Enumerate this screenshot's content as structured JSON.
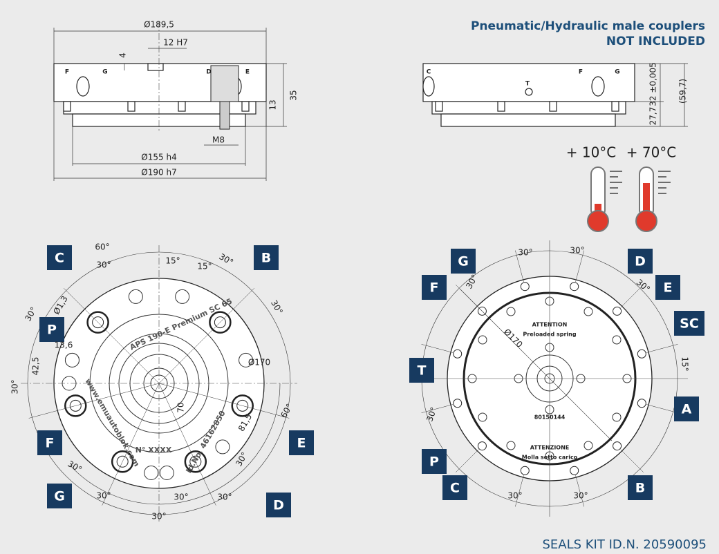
{
  "header": {
    "title": "Pneumatic/Hydraulic male couplers",
    "subtitle": "NOT INCLUDED"
  },
  "footer": "SEALS KIT ID.N. 20590095",
  "temperatures": [
    "+ 10°C",
    "+ 70°C"
  ],
  "side_view_left": {
    "ports": [
      "F",
      "G",
      "D",
      "E"
    ],
    "dimensions": [
      "Ø189,5",
      "12 H7",
      "4",
      "35",
      "13",
      "M8",
      "Ø155 h4",
      "Ø190 h7"
    ]
  },
  "side_view_right": {
    "ports": [
      "C",
      "T",
      "F",
      "G"
    ],
    "dimensions": [
      "32 ±0,005",
      "(59,7)",
      "27,7"
    ]
  },
  "front_view_left": {
    "labels": [
      "C",
      "B",
      "P",
      "F",
      "E",
      "G",
      "D"
    ],
    "dimensions": [
      "60°",
      "30°",
      "15°",
      "15°",
      "30°",
      "30°",
      "30°",
      "Ø1,3",
      "13,6",
      "42,5",
      "30°",
      "Ø170",
      "70",
      "81,5",
      "60°",
      "30°",
      "30°",
      "30°",
      "30°",
      "30°",
      "30°"
    ],
    "engraving": [
      "APS 190-E Premium SC 65",
      "www.emuautoblok.com",
      "Id.No. 46162850",
      "N° XXXX"
    ]
  },
  "front_view_right": {
    "labels": [
      "G",
      "D",
      "F",
      "E",
      "SC",
      "T",
      "A",
      "P",
      "C",
      "B"
    ],
    "dimensions": [
      "30°",
      "30°",
      "30°",
      "30°",
      "Ø170",
      "15°",
      "30°",
      "30°",
      "30°"
    ],
    "notes": [
      "ATTENTION",
      "Preloaded spring",
      "80150144",
      "ATTENZIONE",
      "Molla sotto carico"
    ]
  }
}
